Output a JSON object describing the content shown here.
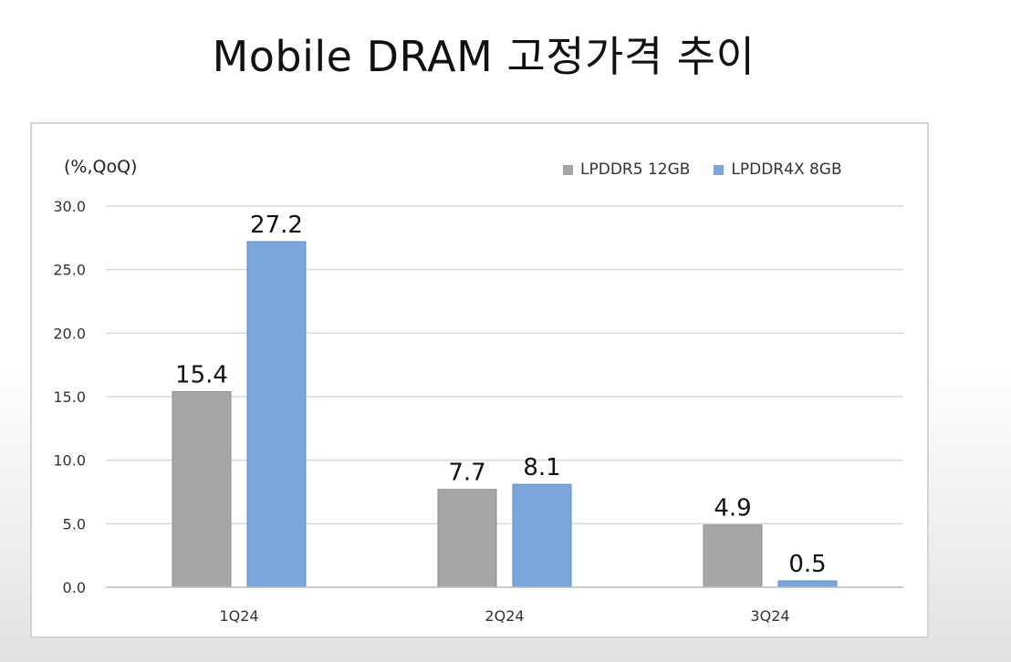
{
  "title": "Mobile DRAM 고정가격 추이",
  "chart_data": {
    "type": "bar",
    "unit_label": "(%,QoQ)",
    "categories": [
      "1Q24",
      "2Q24",
      "3Q24"
    ],
    "series": [
      {
        "name": "LPDDR5 12GB",
        "color": "#a6a6a6",
        "values": [
          15.4,
          7.7,
          4.9
        ],
        "labels": [
          "15.4",
          "7.7",
          "4.9"
        ]
      },
      {
        "name": "LPDDR4X 8GB",
        "color": "#7aa6dc",
        "values": [
          27.2,
          8.1,
          0.5
        ],
        "labels": [
          "27.2",
          "8.1",
          "0.5"
        ]
      }
    ],
    "ylim": [
      0,
      30
    ],
    "yticks": [
      "0.0",
      "5.0",
      "10.0",
      "15.0",
      "20.0",
      "25.0",
      "30.0"
    ],
    "grid": true,
    "legend_position": "top-right"
  }
}
